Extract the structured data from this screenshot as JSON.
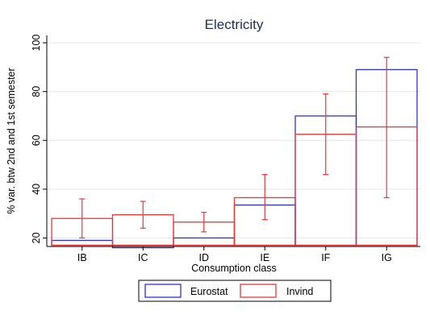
{
  "chart_data": {
    "type": "bar",
    "title": "Electricity",
    "xlabel": "Consumption class",
    "ylabel": "% var. btw 2nd and 1st semester",
    "categories": [
      "IB",
      "IC",
      "ID",
      "IE",
      "IF",
      "IG"
    ],
    "series": [
      {
        "name": "Eurostat",
        "color": "#3030d8",
        "values": [
          19,
          16,
          20,
          33.5,
          70,
          89
        ]
      },
      {
        "name": "Invind",
        "color": "#e8383c",
        "values": [
          28,
          29.5,
          26.5,
          36.5,
          62.5,
          65.5
        ],
        "ci_low": [
          20,
          24,
          22.5,
          27.5,
          46,
          36.5
        ],
        "ci_high": [
          36,
          35,
          30.5,
          46,
          79,
          94
        ]
      }
    ],
    "baseline": 17,
    "yticks": [
      20,
      40,
      60,
      80,
      100
    ],
    "ylim": [
      16.5,
      103
    ],
    "grid": true,
    "legend_position": "bottom"
  }
}
